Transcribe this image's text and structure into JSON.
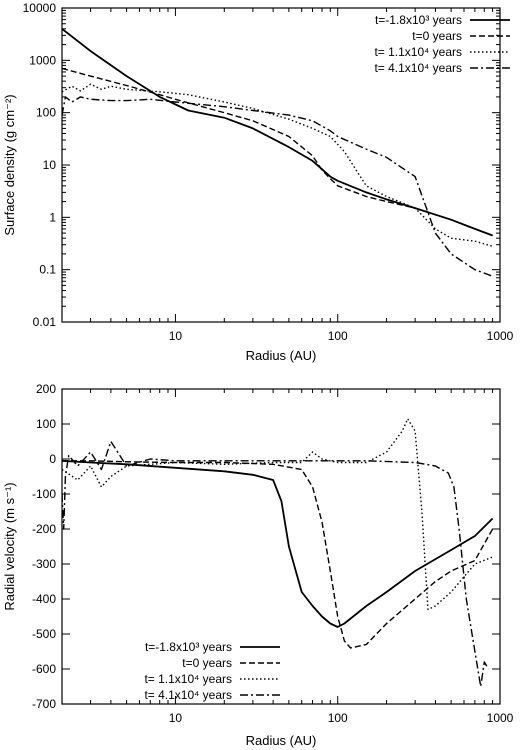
{
  "chart_data": [
    {
      "type": "line",
      "xscale": "log",
      "yscale": "log",
      "xlim": [
        2,
        1000
      ],
      "ylim": [
        0.01,
        10000
      ],
      "xlabel": "Radius (AU)",
      "ylabel": "Surface density (g cm⁻²)",
      "xticks": [
        {
          "value": 10,
          "label": "10"
        },
        {
          "value": 100,
          "label": "100"
        },
        {
          "value": 1000,
          "label": "1000"
        }
      ],
      "yticks": [
        {
          "value": 0.01,
          "label": "0.01"
        },
        {
          "value": 0.1,
          "label": "0.1"
        },
        {
          "value": 1,
          "label": "1"
        },
        {
          "value": 10,
          "label": "10"
        },
        {
          "value": 100,
          "label": "100"
        },
        {
          "value": 1000,
          "label": "1000"
        },
        {
          "value": 10000,
          "label": "10000"
        }
      ],
      "legend_position": "top-right",
      "series": [
        {
          "name": "t=-1.8x10³ years",
          "dash": "solid",
          "x": [
            2,
            3,
            5,
            8,
            12,
            20,
            30,
            50,
            70,
            90,
            100,
            150,
            200,
            300,
            500,
            700,
            900
          ],
          "y": [
            4000,
            1500,
            500,
            200,
            110,
            80,
            50,
            22,
            12,
            6,
            5,
            3,
            2.2,
            1.5,
            0.9,
            0.6,
            0.45
          ]
        },
        {
          "name": "t=0 years",
          "dash": "dashed",
          "x": [
            2,
            3,
            5,
            8,
            10,
            20,
            30,
            50,
            70,
            80,
            90,
            100,
            150,
            200,
            300,
            500,
            700,
            900
          ],
          "y": [
            700,
            500,
            330,
            220,
            180,
            100,
            70,
            35,
            15,
            8,
            5.5,
            4,
            2.5,
            2,
            1.5,
            0.9,
            0.6,
            0.45
          ]
        },
        {
          "name": "t= 1.1x10⁴ years",
          "dash": "dotted",
          "x": [
            2,
            2.3,
            2.6,
            3,
            3.5,
            4,
            5,
            8,
            12,
            20,
            30,
            50,
            70,
            90,
            110,
            130,
            150,
            200,
            300,
            400,
            500,
            700,
            900
          ],
          "y": [
            250,
            320,
            260,
            350,
            280,
            320,
            280,
            250,
            220,
            160,
            120,
            75,
            50,
            35,
            18,
            8,
            4,
            2.5,
            1.5,
            0.6,
            0.4,
            0.35,
            0.28
          ]
        },
        {
          "name": "t= 4.1x10⁴ years",
          "dash": "dashdot",
          "x": [
            2,
            2.1,
            2.3,
            2.6,
            3,
            4,
            5,
            7,
            10,
            20,
            30,
            50,
            70,
            90,
            100,
            150,
            200,
            300,
            400,
            500,
            700,
            900
          ],
          "y": [
            90,
            200,
            160,
            200,
            180,
            170,
            170,
            180,
            160,
            130,
            110,
            90,
            70,
            45,
            35,
            20,
            14,
            6,
            0.5,
            0.2,
            0.1,
            0.075
          ]
        }
      ]
    },
    {
      "type": "line",
      "xscale": "log",
      "yscale": "linear",
      "xlim": [
        2,
        1000
      ],
      "ylim": [
        -700,
        200
      ],
      "xlabel": "Radius (AU)",
      "ylabel": "Radial velocity (m s⁻¹)",
      "xticks": [
        {
          "value": 10,
          "label": "10"
        },
        {
          "value": 100,
          "label": "100"
        },
        {
          "value": 1000,
          "label": "1000"
        }
      ],
      "yticks": [
        {
          "value": 200,
          "label": "200"
        },
        {
          "value": 100,
          "label": "100"
        },
        {
          "value": 0,
          "label": "0"
        },
        {
          "value": -100,
          "label": "-100"
        },
        {
          "value": -200,
          "label": "-200"
        },
        {
          "value": -300,
          "label": "-300"
        },
        {
          "value": -400,
          "label": "-400"
        },
        {
          "value": -500,
          "label": "-500"
        },
        {
          "value": -600,
          "label": "-600"
        },
        {
          "value": -700,
          "label": "-700"
        }
      ],
      "legend_position": "bottom-left",
      "series": [
        {
          "name": "t=-1.8x10³ years",
          "dash": "solid",
          "x": [
            2,
            3,
            5,
            10,
            20,
            30,
            40,
            45,
            50,
            60,
            70,
            80,
            90,
            100,
            110,
            150,
            200,
            300,
            500,
            700,
            900
          ],
          "y": [
            -5,
            -10,
            -15,
            -25,
            -35,
            -45,
            -60,
            -120,
            -250,
            -380,
            -420,
            -450,
            -470,
            -480,
            -470,
            -420,
            -380,
            -320,
            -260,
            -220,
            -170
          ]
        },
        {
          "name": "t=0 years",
          "dash": "dashed",
          "x": [
            2,
            3,
            5,
            10,
            20,
            40,
            60,
            70,
            80,
            90,
            100,
            110,
            120,
            150,
            200,
            300,
            400,
            500,
            700,
            900
          ],
          "y": [
            -5,
            -5,
            -8,
            -10,
            -10,
            -15,
            -30,
            -80,
            -180,
            -320,
            -450,
            -520,
            -540,
            -530,
            -470,
            -400,
            -350,
            -320,
            -290,
            -200
          ]
        },
        {
          "name": "t= 1.1x10⁴ years",
          "dash": "dotted",
          "x": [
            2,
            2.5,
            3,
            3.5,
            4,
            5,
            7,
            10,
            20,
            40,
            60,
            70,
            80,
            100,
            150,
            200,
            250,
            270,
            300,
            330,
            360,
            400,
            500,
            700,
            900
          ],
          "y": [
            -30,
            -60,
            -20,
            -80,
            -50,
            -20,
            -15,
            -10,
            -15,
            -10,
            -10,
            20,
            0,
            -10,
            -10,
            20,
            80,
            115,
            80,
            -150,
            -430,
            -420,
            -380,
            -300,
            -280
          ]
        },
        {
          "name": "t= 4.1x10⁴ years",
          "dash": "dashdot",
          "x": [
            2,
            2.05,
            2.1,
            2.2,
            2.5,
            3,
            3.5,
            4,
            5,
            7,
            10,
            20,
            40,
            80,
            150,
            300,
            400,
            480,
            520,
            560,
            620,
            700,
            760,
            800,
            850
          ],
          "y": [
            -100,
            -200,
            -50,
            10,
            -20,
            20,
            -30,
            50,
            -20,
            0,
            -5,
            -5,
            -5,
            -5,
            -5,
            -10,
            -20,
            -40,
            -80,
            -200,
            -400,
            -550,
            -650,
            -580,
            -600
          ]
        }
      ]
    }
  ]
}
